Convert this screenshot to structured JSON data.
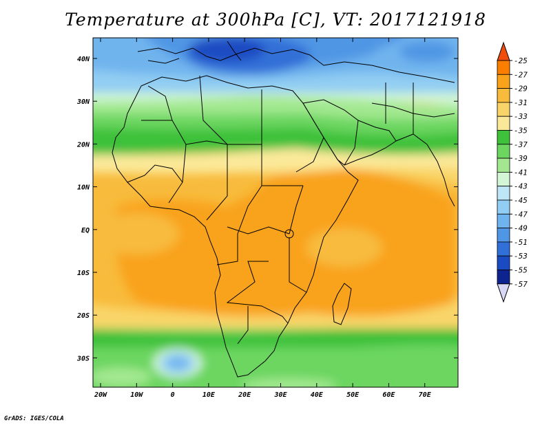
{
  "title": "Temperature at 300hPa [C], VT: 2017121918",
  "credit": "GrADS: IGES/COLA",
  "map": {
    "region": "Africa",
    "variable": "Temperature at 300hPa",
    "units": "C",
    "valid_time": "2017121918",
    "lon_labels": [
      "20W",
      "10W",
      "0",
      "10E",
      "20E",
      "30E",
      "40E",
      "50E",
      "60E",
      "70E"
    ],
    "lat_labels": [
      "40N",
      "30N",
      "20N",
      "10N",
      "EQ",
      "10S",
      "20S",
      "30S"
    ]
  },
  "colorbar": {
    "levels": [
      "-25",
      "-27",
      "-29",
      "-31",
      "-33",
      "-35",
      "-37",
      "-39",
      "-41",
      "-43",
      "-45",
      "-47",
      "-49",
      "-51",
      "-53",
      "-55",
      "-57"
    ],
    "colors": [
      "#f04c0c",
      "#fb7e00",
      "#f9a31a",
      "#f8bb3c",
      "#f9d569",
      "#fbe99a",
      "#3ec13b",
      "#6cd660",
      "#a3e890",
      "#d2f6d6",
      "#bde6f6",
      "#92cef3",
      "#6fb4ee",
      "#4f96e4",
      "#3170d8",
      "#1b4bc2",
      "#0c2390",
      "#d8d8f6"
    ]
  }
}
